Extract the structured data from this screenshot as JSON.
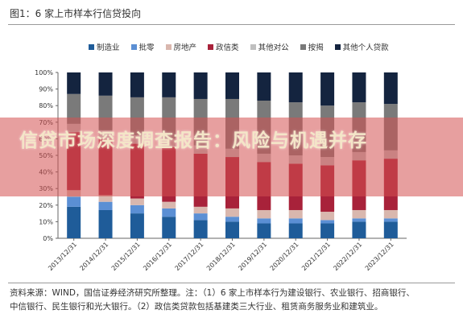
{
  "figure_title": "图1：6 家上市样本行信贷投向",
  "banner_text": "信贷市场深度调查报告：风险与机遇并存",
  "source_notes": [
    "资料来源：WIND，国信证券经济研究所整理。注：（1）6 家上市样本行为建设银行、农业银行、招商银行、",
    "中信银行、民生银行和光大银行。（2）政信类贷款包括基建类三大行业、租赁商务服务业和建筑业。"
  ],
  "chart_data": {
    "type": "bar",
    "stacked": true,
    "categories": [
      "2013/12/31",
      "2014/12/31",
      "2015/12/31",
      "2016/12/31",
      "2017/12/31",
      "2018/12/31",
      "2019/12/31",
      "2020/12/31",
      "2021/12/31",
      "2022/12/31",
      "2023/12/31"
    ],
    "series": [
      {
        "name": "制造业",
        "color": "#1f5c99",
        "values": [
          19,
          17,
          15,
          13,
          11,
          10,
          9,
          9,
          9,
          10,
          10
        ]
      },
      {
        "name": "批零",
        "color": "#5b8fd4",
        "values": [
          6,
          5,
          5,
          5,
          4,
          3,
          3,
          3,
          2,
          2,
          2
        ]
      },
      {
        "name": "房地产",
        "color": "#d9b7ae",
        "values": [
          4,
          4,
          4,
          4,
          4,
          5,
          5,
          5,
          5,
          5,
          5
        ]
      },
      {
        "name": "政信类",
        "color": "#a8223a",
        "values": [
          35,
          34,
          33,
          33,
          32,
          31,
          29,
          28,
          28,
          30,
          31
        ]
      },
      {
        "name": "其他对公",
        "color": "#bfbfbf",
        "values": [
          5,
          5,
          5,
          5,
          5,
          5,
          5,
          5,
          5,
          5,
          5
        ]
      },
      {
        "name": "按揭",
        "color": "#7a7a7a",
        "values": [
          18,
          21,
          23,
          25,
          28,
          30,
          32,
          32,
          31,
          30,
          28
        ]
      },
      {
        "name": "其他个人贷款",
        "color": "#14243f",
        "values": [
          13,
          14,
          15,
          15,
          16,
          16,
          17,
          18,
          20,
          18,
          19
        ]
      }
    ],
    "y_ticks": [
      "0%",
      "10%",
      "20%",
      "30%",
      "40%",
      "50%",
      "60%",
      "70%",
      "80%",
      "90%",
      "100%"
    ],
    "ylim": [
      0,
      100
    ],
    "grid": false,
    "legend_position": "top"
  }
}
